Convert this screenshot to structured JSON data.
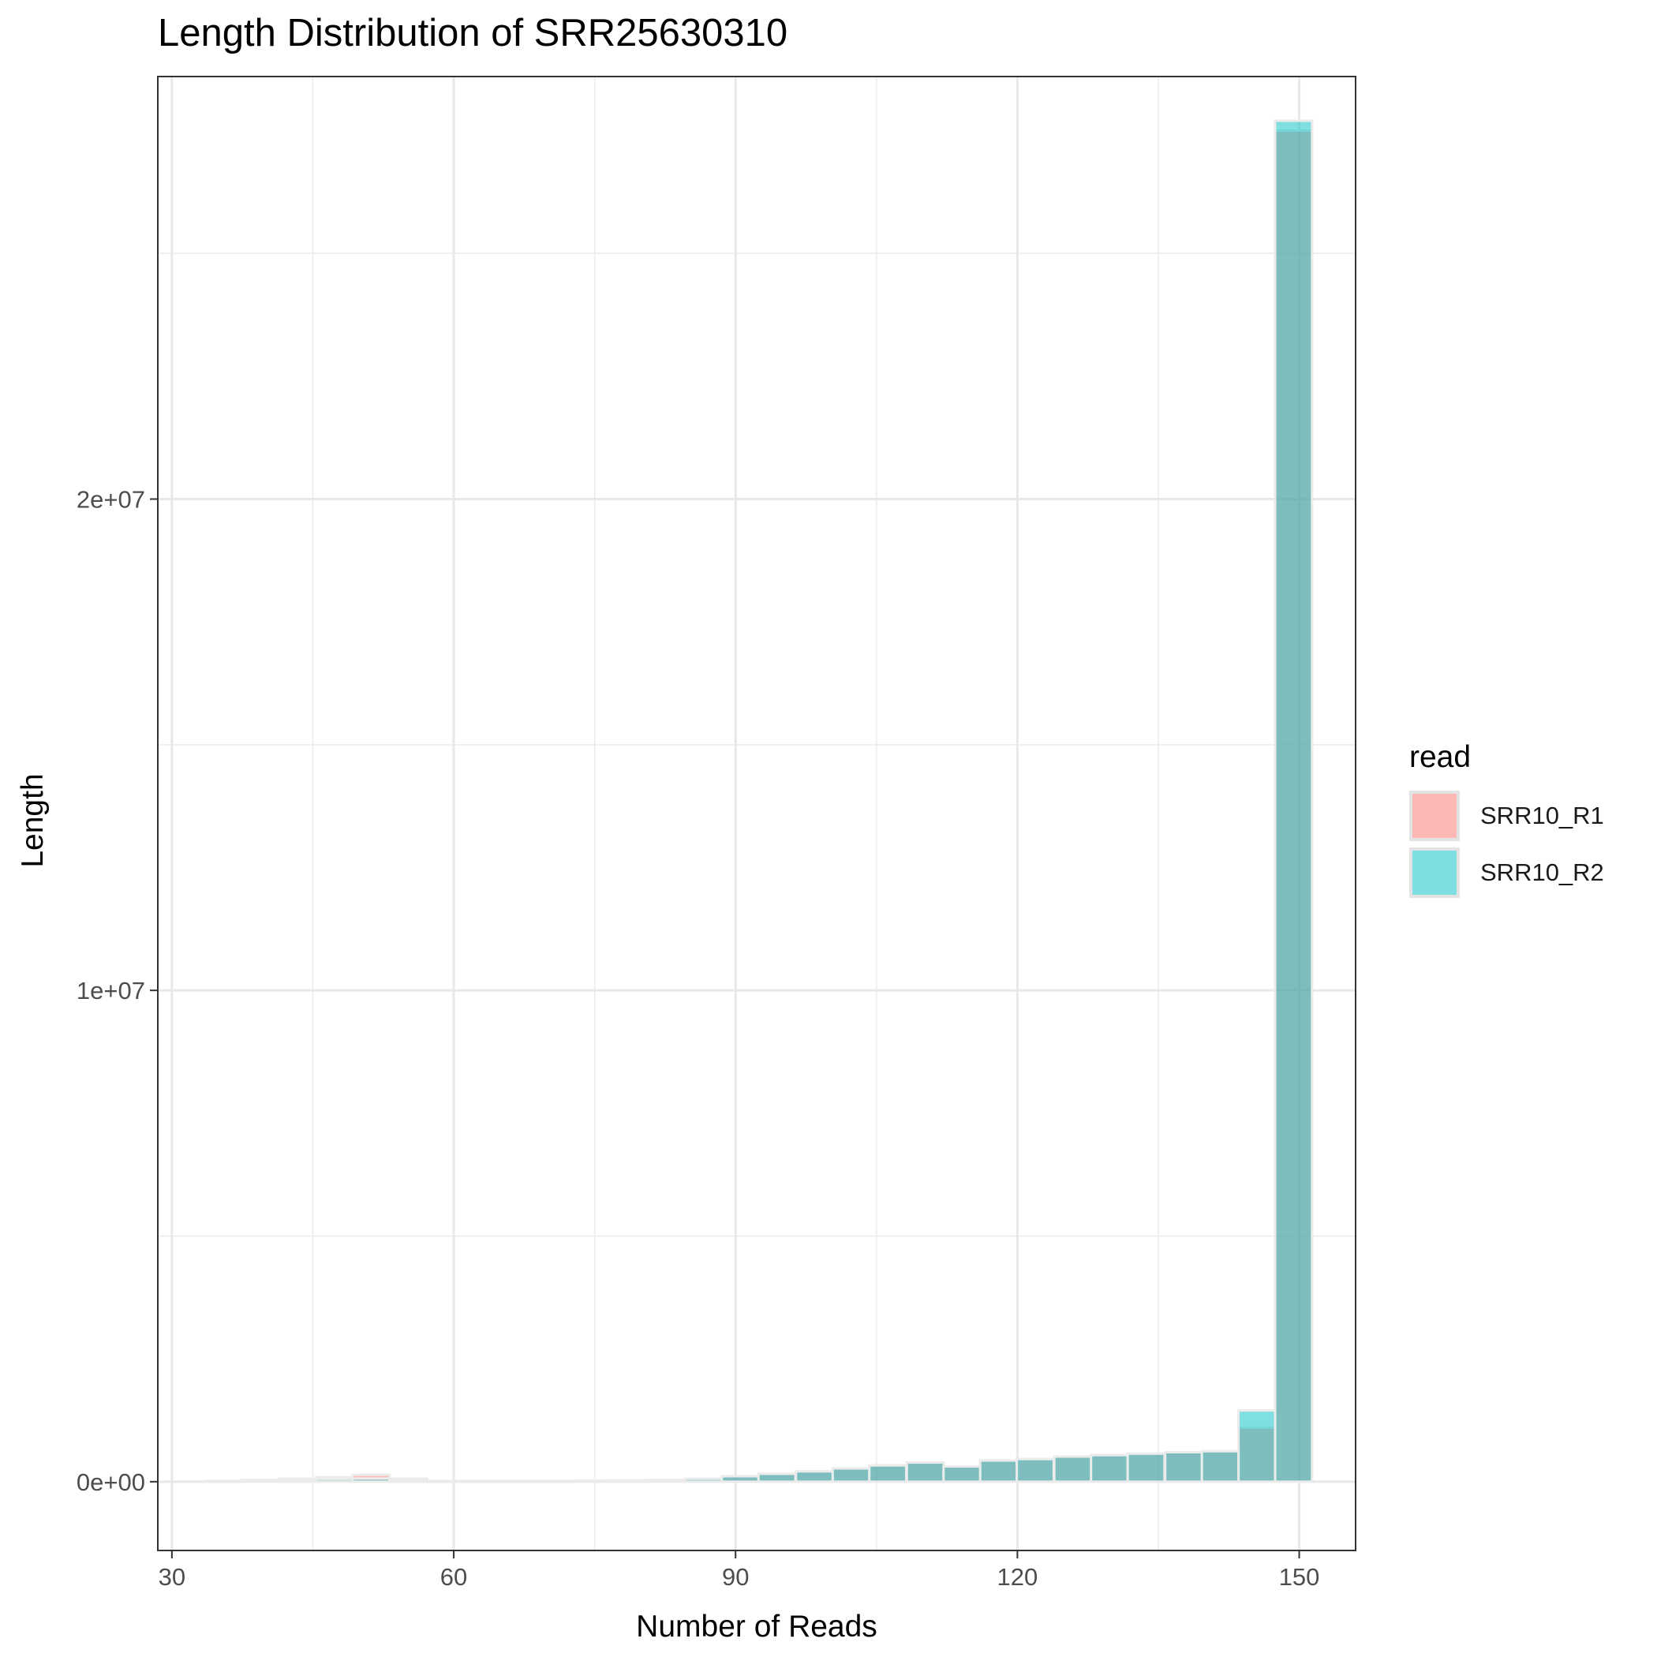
{
  "chart_data": {
    "type": "bar",
    "title": "Length Distribution of SRR25630310",
    "xlabel": "Number of Reads",
    "ylabel": "Length",
    "xlim": [
      28.5,
      156
    ],
    "ylim": [
      -1400000,
      28600000
    ],
    "x_ticks": [
      30,
      60,
      90,
      120,
      150
    ],
    "x_tick_labels": [
      "30",
      "60",
      "90",
      "120",
      "150"
    ],
    "y_ticks": [
      0,
      10000000,
      20000000
    ],
    "y_tick_labels": [
      "0e+00",
      "1e+07",
      "2e+07"
    ],
    "y_minor_ticks": [
      5000000,
      15000000,
      25000000
    ],
    "grid": true,
    "bin_width": 3.93,
    "legend": {
      "title": "read",
      "position": "right"
    },
    "x": [
      35.5,
      39.4,
      43.4,
      47.3,
      51.2,
      55.2,
      59.1,
      63.0,
      66.9,
      70.9,
      74.8,
      78.7,
      82.7,
      86.6,
      90.5,
      94.4,
      98.4,
      102.3,
      106.2,
      110.2,
      114.1,
      118.0,
      121.9,
      125.9,
      129.8,
      133.7,
      137.7,
      141.6,
      145.5,
      149.4
    ],
    "series": [
      {
        "name": "SRR10_R1",
        "color": "#F8766D",
        "values": [
          15000,
          40000,
          60000,
          90000,
          140000,
          60000,
          15000,
          15000,
          15000,
          15000,
          20000,
          25000,
          35000,
          60000,
          110000,
          160000,
          210000,
          270000,
          330000,
          390000,
          310000,
          430000,
          460000,
          510000,
          540000,
          570000,
          600000,
          620000,
          1100000,
          27500000
        ]
      },
      {
        "name": "SRR10_R2",
        "color": "#00BFC4",
        "values": [
          15000,
          30000,
          40000,
          55000,
          65000,
          45000,
          15000,
          15000,
          15000,
          15000,
          20000,
          25000,
          35000,
          60000,
          110000,
          160000,
          210000,
          270000,
          330000,
          390000,
          310000,
          430000,
          460000,
          510000,
          540000,
          570000,
          600000,
          620000,
          1450000,
          27700000
        ]
      }
    ]
  }
}
